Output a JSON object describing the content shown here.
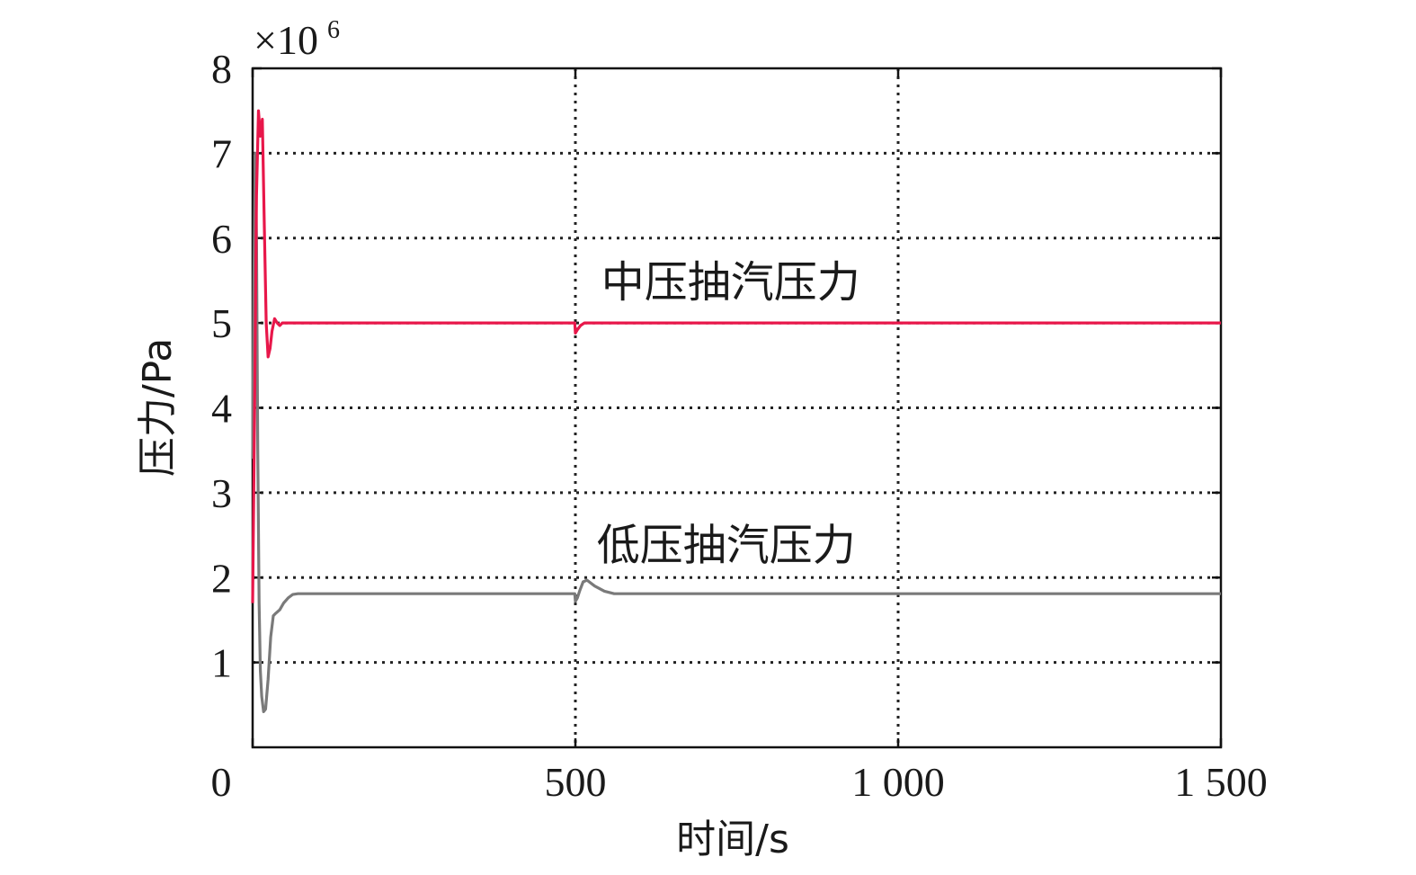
{
  "chart_data": {
    "type": "line",
    "xlabel": "时间/s",
    "ylabel": "压力/Pa",
    "y_multiplier": "×10",
    "y_exponent": "6",
    "xlim": [
      0,
      1500
    ],
    "ylim": [
      0,
      8
    ],
    "x_ticks": [
      0,
      500,
      1000,
      1500
    ],
    "x_tick_labels": [
      "0",
      "500",
      "1 000",
      "1 500"
    ],
    "y_ticks": [
      1,
      2,
      3,
      4,
      5,
      6,
      7,
      8
    ],
    "y_tick_labels": [
      "1",
      "2",
      "3",
      "4",
      "5",
      "6",
      "7",
      "8"
    ],
    "grid": true,
    "series": [
      {
        "color": "#e8174a",
        "x": [
          0,
          3,
          6,
          9,
          12,
          15,
          18,
          21,
          24,
          27,
          30,
          34,
          38,
          42,
          46,
          52,
          58,
          65,
          75,
          90,
          120,
          200,
          499,
          500,
          503,
          508,
          514,
          520,
          540,
          700,
          1000,
          1500
        ],
        "y": [
          1.7,
          4.0,
          6.5,
          7.5,
          7.2,
          7.4,
          6.2,
          5.0,
          4.6,
          4.7,
          4.9,
          5.05,
          5.0,
          4.97,
          5.0,
          5.0,
          5.0,
          5.0,
          5.0,
          5.0,
          5.0,
          5.0,
          5.0,
          4.88,
          4.92,
          4.97,
          5.0,
          5.0,
          5.0,
          5.0,
          5.0,
          5.0
        ]
      },
      {
        "color": "#7a7a7a",
        "x": [
          0,
          2,
          4,
          6,
          8,
          10,
          12,
          14,
          17,
          20,
          24,
          28,
          32,
          36,
          42,
          48,
          55,
          62,
          70,
          80,
          95,
          120,
          200,
          499,
          500,
          503,
          507,
          512,
          518,
          530,
          545,
          560,
          580,
          600,
          700,
          1000,
          1500
        ],
        "y": [
          3.4,
          5.5,
          7.0,
          6.0,
          3.5,
          1.7,
          0.9,
          0.6,
          0.42,
          0.45,
          0.8,
          1.3,
          1.55,
          1.58,
          1.62,
          1.7,
          1.76,
          1.8,
          1.81,
          1.81,
          1.81,
          1.81,
          1.81,
          1.81,
          1.72,
          1.76,
          1.85,
          1.95,
          1.97,
          1.9,
          1.84,
          1.81,
          1.81,
          1.81,
          1.81,
          1.81,
          1.81
        ]
      }
    ],
    "annotations": [
      {
        "text": "中压抽汽压力",
        "x": 540,
        "y": 5.5
      },
      {
        "text": "低压抽汽压力",
        "x": 533,
        "y": 2.4
      }
    ]
  }
}
